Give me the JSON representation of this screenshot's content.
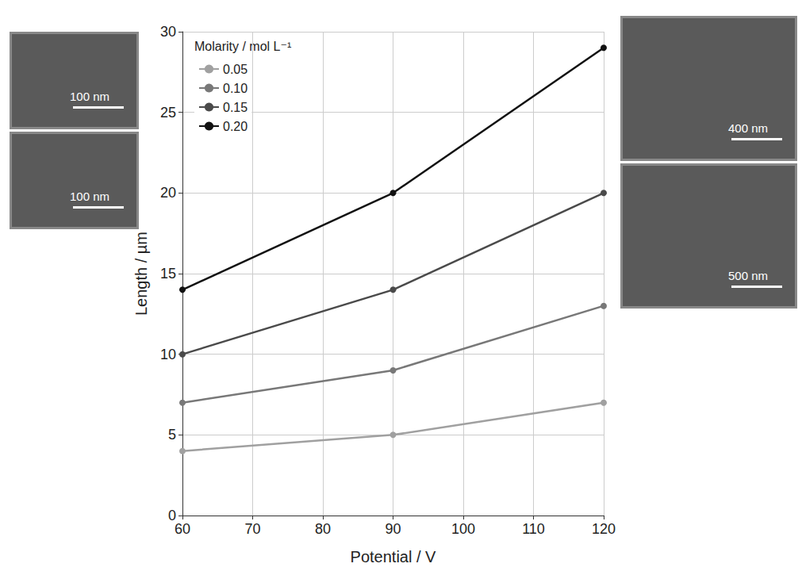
{
  "chart_data": {
    "type": "line",
    "x": [
      60,
      90,
      120
    ],
    "xlim": [
      60,
      120
    ],
    "xticks": [
      60,
      70,
      80,
      90,
      100,
      110,
      120
    ],
    "ylim": [
      0,
      30
    ],
    "yticks": [
      0,
      5,
      10,
      15,
      20,
      25,
      30
    ],
    "xlabel": "Potential / V",
    "ylabel": "Length / µm",
    "zlabel": "Molarity / mol L⁻¹",
    "series": [
      {
        "name": "0.05",
        "color": "#a0a0a0",
        "values": [
          4,
          5,
          7
        ]
      },
      {
        "name": "0.10",
        "color": "#787878",
        "values": [
          7,
          9,
          13
        ]
      },
      {
        "name": "0.15",
        "color": "#4a4a4a",
        "values": [
          10,
          14,
          20
        ]
      },
      {
        "name": "0.20",
        "color": "#111111",
        "values": [
          14,
          20,
          29
        ]
      }
    ],
    "grid": true,
    "legend": "upper left",
    "annotations": [
      "100 nm",
      "100 nm",
      "400 nm",
      "500 nm"
    ]
  }
}
